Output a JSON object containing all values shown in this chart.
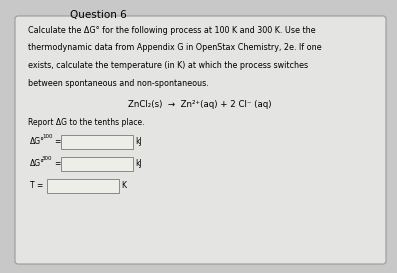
{
  "title": "Question 6",
  "bg_color": "#c8c8c8",
  "box_bg_color": "#e4e4e2",
  "line1": "Calculate the ΔG° for the following process at 100 K and 300 K. Use the",
  "line2": "thermodynamic data from Appendix G in OpenStax Chemistry, 2e. If one",
  "line3": "exists, calculate the temperature (in K) at which the process switches",
  "line4": "between spontaneous and non-spontaneous.",
  "reaction": "ZnCl₂(s)  →  Zn²⁺(aq) + 2 Cl⁻ (aq)",
  "report_line": "Report ΔG to the tenths place.",
  "unit_kJ": "kJ",
  "unit_K": "K",
  "title_fontsize": 7.5,
  "body_fontsize": 5.8,
  "reaction_fontsize": 6.2,
  "label_fontsize": 5.5,
  "input_box_color": "#eeeee8",
  "input_box_edge": "#888888",
  "box_edge_color": "#999999"
}
